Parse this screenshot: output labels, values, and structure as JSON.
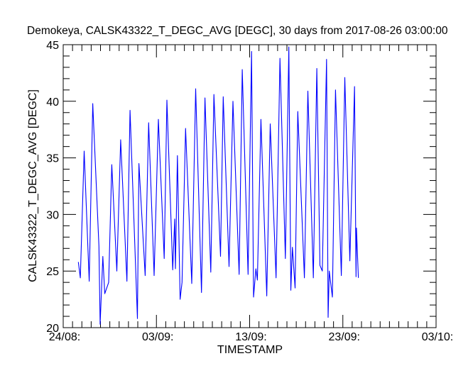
{
  "chart_data": {
    "type": "line",
    "title": "Demokeya, CALSK43322_T_DEGC_AVG [DEGC], 30 days from  2017-08-26 03:00:00",
    "xlabel": "TIMESTAMP",
    "ylabel": "CALSK43322_T_DEGC_AVG [DEGC]",
    "xlim": [
      "2017-08-24 00:00",
      "2017-10-03 00:00"
    ],
    "ylim": [
      20,
      45
    ],
    "x_ticks": [
      {
        "date": "2017-08-24 00:00",
        "label": "24/08:"
      },
      {
        "date": "2017-09-03 00:00",
        "label": "03/09:"
      },
      {
        "date": "2017-09-13 00:00",
        "label": "13/09:"
      },
      {
        "date": "2017-09-23 00:00",
        "label": "23/09:"
      },
      {
        "date": "2017-10-03 00:00",
        "label": "03/10:"
      }
    ],
    "y_ticks": [
      20,
      25,
      30,
      35,
      40,
      45
    ],
    "grid": false,
    "line_color": "#0000ff",
    "series": [
      {
        "points": [
          [
            "2017-08-25 15:00",
            25.8
          ],
          [
            "2017-08-25 20:00",
            24.4
          ],
          [
            "2017-08-26 06:00",
            35.6
          ],
          [
            "2017-08-26 19:00",
            24.1
          ],
          [
            "2017-08-27 04:00",
            39.8
          ],
          [
            "2017-08-27 20:00",
            27.2
          ],
          [
            "2017-08-27 23:00",
            20.3
          ],
          [
            "2017-08-28 06:00",
            26.3
          ],
          [
            "2017-08-28 11:00",
            23.0
          ],
          [
            "2017-08-28 21:00",
            24.0
          ],
          [
            "2017-08-29 05:00",
            34.4
          ],
          [
            "2017-08-29 18:00",
            25.0
          ],
          [
            "2017-08-30 04:00",
            36.6
          ],
          [
            "2017-08-30 20:00",
            24.1
          ],
          [
            "2017-08-31 04:00",
            39.2
          ],
          [
            "2017-08-31 23:00",
            20.8
          ],
          [
            "2017-09-01 03:00",
            34.5
          ],
          [
            "2017-09-01 19:00",
            24.6
          ],
          [
            "2017-09-02 04:00",
            38.1
          ],
          [
            "2017-09-02 18:00",
            24.6
          ],
          [
            "2017-09-03 05:00",
            38.4
          ],
          [
            "2017-09-03 20:00",
            26.1
          ],
          [
            "2017-09-04 03:00",
            40.1
          ],
          [
            "2017-09-04 18:00",
            25.1
          ],
          [
            "2017-09-04 23:00",
            29.6
          ],
          [
            "2017-09-05 01:00",
            25.2
          ],
          [
            "2017-09-05 06:00",
            35.2
          ],
          [
            "2017-09-05 13:00",
            22.5
          ],
          [
            "2017-09-05 18:00",
            24.0
          ],
          [
            "2017-09-06 03:00",
            37.6
          ],
          [
            "2017-09-06 19:00",
            23.9
          ],
          [
            "2017-09-07 05:00",
            41.1
          ],
          [
            "2017-09-07 20:00",
            23.1
          ],
          [
            "2017-09-08 05:00",
            40.3
          ],
          [
            "2017-09-08 20:00",
            24.9
          ],
          [
            "2017-09-09 04:00",
            40.6
          ],
          [
            "2017-09-09 21:00",
            26.3
          ],
          [
            "2017-09-10 04:00",
            40.4
          ],
          [
            "2017-09-10 19:00",
            25.4
          ],
          [
            "2017-09-11 05:00",
            40.0
          ],
          [
            "2017-09-11 21:00",
            24.7
          ],
          [
            "2017-09-12 05:00",
            42.8
          ],
          [
            "2017-09-12 20:00",
            24.7
          ],
          [
            "2017-09-13 05:00",
            44.4
          ],
          [
            "2017-09-13 10:00",
            22.7
          ],
          [
            "2017-09-13 16:00",
            25.2
          ],
          [
            "2017-09-13 20:00",
            24.2
          ],
          [
            "2017-09-14 05:00",
            38.4
          ],
          [
            "2017-09-14 20:00",
            22.8
          ],
          [
            "2017-09-15 05:00",
            38.0
          ],
          [
            "2017-09-15 20:00",
            24.4
          ],
          [
            "2017-09-16 06:00",
            43.8
          ],
          [
            "2017-09-16 20:00",
            26.1
          ],
          [
            "2017-09-17 05:00",
            44.8
          ],
          [
            "2017-09-17 10:00",
            23.3
          ],
          [
            "2017-09-17 14:00",
            27.1
          ],
          [
            "2017-09-17 21:00",
            23.5
          ],
          [
            "2017-09-18 04:00",
            39.1
          ],
          [
            "2017-09-18 21:00",
            24.4
          ],
          [
            "2017-09-19 06:00",
            40.9
          ],
          [
            "2017-09-19 20:00",
            24.4
          ],
          [
            "2017-09-20 05:00",
            42.9
          ],
          [
            "2017-09-20 13:00",
            25.5
          ],
          [
            "2017-09-20 19:00",
            25.0
          ],
          [
            "2017-09-21 06:00",
            43.7
          ],
          [
            "2017-09-21 10:00",
            20.9
          ],
          [
            "2017-09-21 13:00",
            25.0
          ],
          [
            "2017-09-21 21:00",
            22.7
          ],
          [
            "2017-09-22 05:00",
            41.0
          ],
          [
            "2017-09-22 20:00",
            24.6
          ],
          [
            "2017-09-23 05:00",
            42.1
          ],
          [
            "2017-09-23 18:00",
            25.9
          ],
          [
            "2017-09-24 06:00",
            41.3
          ],
          [
            "2017-09-24 10:00",
            24.5
          ],
          [
            "2017-09-24 11:00",
            28.8
          ],
          [
            "2017-09-24 16:00",
            24.4
          ]
        ]
      }
    ]
  }
}
